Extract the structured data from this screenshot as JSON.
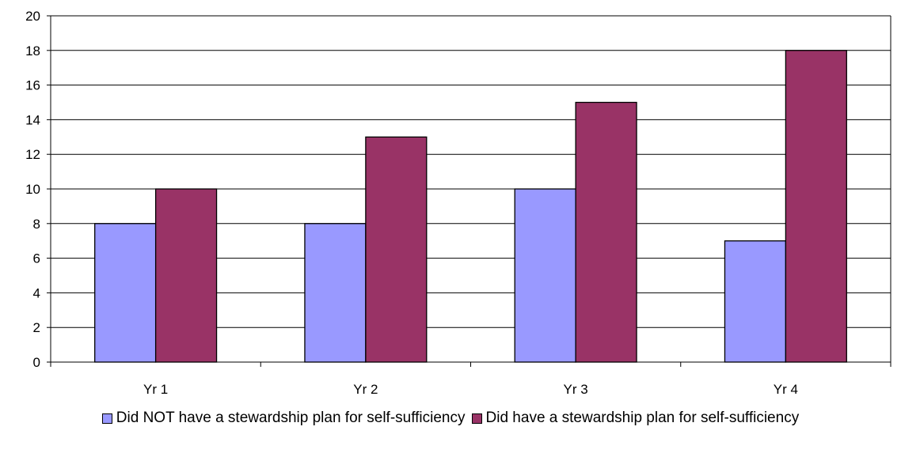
{
  "chart_data": {
    "type": "bar",
    "categories": [
      "Yr 1",
      "Yr 2",
      "Yr 3",
      "Yr 4"
    ],
    "series": [
      {
        "name": "Did NOT have a stewardship plan for self-sufficiency",
        "color": "#9999FF",
        "values": [
          8,
          8,
          10,
          7
        ]
      },
      {
        "name": "Did have a stewardship plan for self-sufficiency",
        "color": "#993366",
        "values": [
          10,
          13,
          15,
          18
        ]
      }
    ],
    "yticks": [
      "0",
      "2",
      "4",
      "6",
      "8",
      "10",
      "12",
      "14",
      "16",
      "18",
      "20"
    ],
    "ylim": [
      0,
      20
    ],
    "grid": true,
    "legend_position": "bottom",
    "title": "",
    "xlabel": "",
    "ylabel": ""
  }
}
